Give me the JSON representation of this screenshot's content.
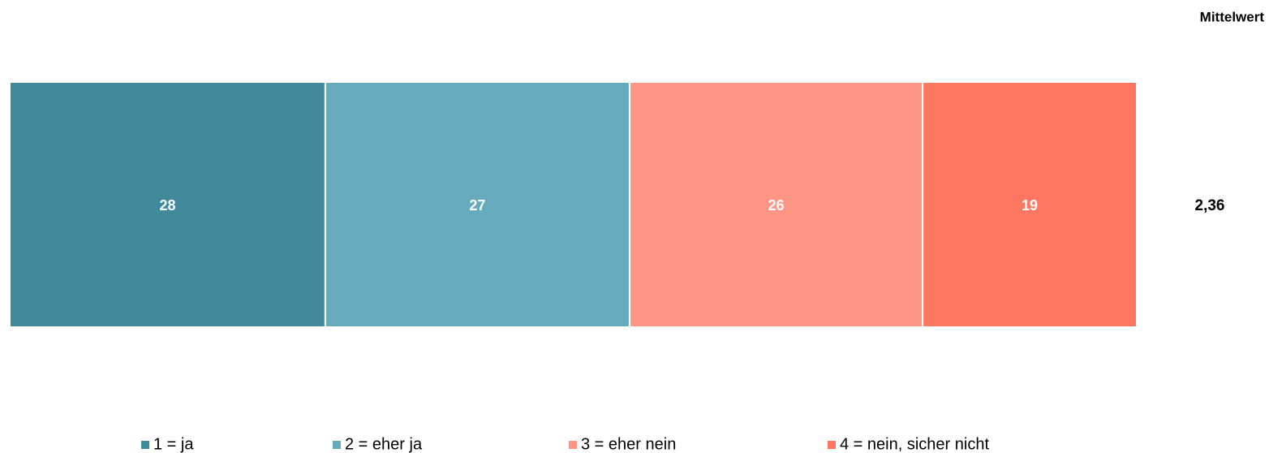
{
  "chart_data": {
    "type": "stacked_bar",
    "orientation": "horizontal",
    "categories": [
      null
    ],
    "series": [
      {
        "name": "1 = ja",
        "color": "#418a9c",
        "values": [
          28
        ]
      },
      {
        "name": "2 = eher ja",
        "color": "#66aabb",
        "values": [
          27
        ]
      },
      {
        "name": "3 = eher nein",
        "color": "#ff9685",
        "values": [
          26
        ]
      },
      {
        "name": "4 = nein, sicher nicht",
        "color": "#ff7663",
        "values": [
          19
        ]
      }
    ],
    "xlim": [
      0,
      100
    ],
    "mean_header": "Mittelwert",
    "mean_values": [
      2.36
    ],
    "mean_value_labels": [
      "2,36"
    ],
    "legend": "bottom"
  }
}
